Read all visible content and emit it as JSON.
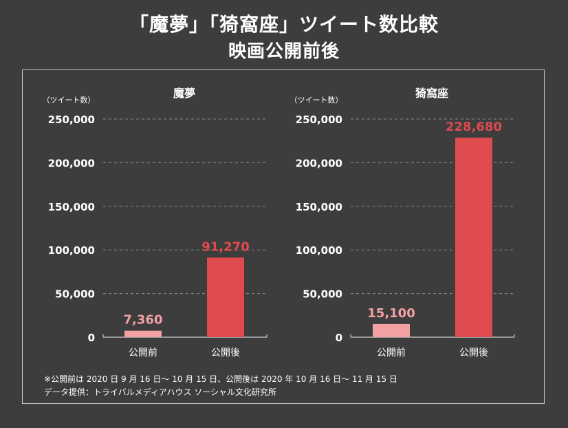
{
  "title": {
    "line1": "「魔夢」「猗窩座」ツイート数比較",
    "line2": "映画公開前後"
  },
  "colors": {
    "background": "#3d3d3d",
    "before_bar": "#f4a1a3",
    "after_bar": "#e04b4f",
    "before_label": "#f4a1a3",
    "after_label": "#e04b4f",
    "grid": "#8a8a8a",
    "text": "#ffffff"
  },
  "footnotes": {
    "period": "※公開前は 2020 日 9 月 16 日～ 10 月 15 日、公開後は 2020 年 10 月 16 日～ 11 月 15 日",
    "source": "データ提供：トライバルメディアハウス ソーシャル文化研究所"
  },
  "chart_data": [
    {
      "type": "bar",
      "title": "魔夢",
      "ylabel": "（ツイート数）",
      "ylim": [
        0,
        250000
      ],
      "yticks": [
        "0",
        "50,000",
        "100,000",
        "150,000",
        "200,000",
        "250,000"
      ],
      "categories": [
        "公開前",
        "公開後"
      ],
      "values": [
        7360,
        91270
      ],
      "value_labels": [
        "7,360",
        "91,270"
      ],
      "grid": "dashed"
    },
    {
      "type": "bar",
      "title": "猗窩座",
      "ylabel": "（ツイート数）",
      "ylim": [
        0,
        250000
      ],
      "yticks": [
        "0",
        "50,000",
        "100,000",
        "150,000",
        "200,000",
        "250,000"
      ],
      "categories": [
        "公開前",
        "公開後"
      ],
      "values": [
        15100,
        228680
      ],
      "value_labels": [
        "15,100",
        "228,680"
      ],
      "grid": "dashed"
    }
  ]
}
